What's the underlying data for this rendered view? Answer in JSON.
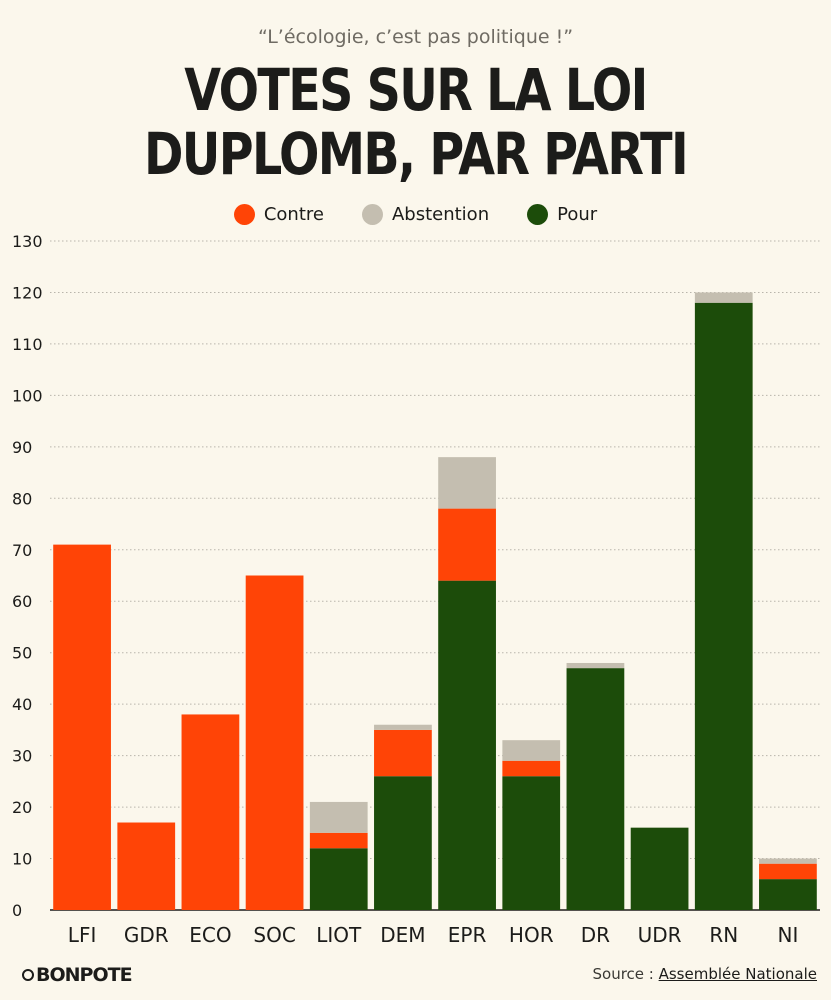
{
  "header": {
    "subtitle": "“L’écologie, c’est pas politique !”",
    "title_line1": "VOTES SUR LA LOI",
    "title_line2": "DUPLOMB, PAR PARTI"
  },
  "footer": {
    "logo": "BONPOTE",
    "source_prefix": "Source : ",
    "source_link": "Assemblée Nationale"
  },
  "colors": {
    "contre": "#ff4406",
    "abstention": "#c4beb0",
    "pour": "#1c4c0a",
    "grid": "#b9b5ab",
    "background": "#fbf7ec"
  },
  "chart_data": {
    "type": "bar",
    "stacked": true,
    "categories": [
      "LFI",
      "GDR",
      "ECO",
      "SOC",
      "LIOT",
      "DEM",
      "EPR",
      "HOR",
      "DR",
      "UDR",
      "RN",
      "NI"
    ],
    "series": [
      {
        "name": "Pour",
        "color": "#1c4c0a",
        "values": [
          0,
          0,
          0,
          0,
          12,
          26,
          64,
          26,
          47,
          16,
          118,
          6
        ]
      },
      {
        "name": "Contre",
        "color": "#ff4406",
        "values": [
          71,
          17,
          38,
          65,
          3,
          9,
          14,
          3,
          0,
          0,
          0,
          3
        ]
      },
      {
        "name": "Abstention",
        "color": "#c4beb0",
        "values": [
          0,
          0,
          0,
          0,
          6,
          1,
          10,
          4,
          1,
          0,
          2,
          1
        ]
      }
    ],
    "legend": [
      "Contre",
      "Abstention",
      "Pour"
    ],
    "legend_position": "top-center",
    "ylim": [
      0,
      130
    ],
    "yticks": [
      0,
      10,
      20,
      30,
      40,
      50,
      60,
      70,
      80,
      90,
      100,
      110,
      120,
      130
    ],
    "grid": true,
    "xlabel": "",
    "ylabel": ""
  }
}
